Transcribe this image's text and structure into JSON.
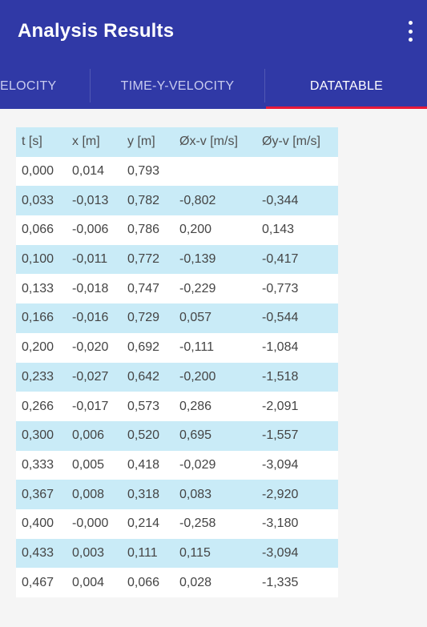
{
  "appbar": {
    "title": "Analysis Results",
    "menu_icon": "more-vert-icon"
  },
  "tabs": [
    {
      "label": "VELOCITY",
      "selected": false
    },
    {
      "label": "TIME-Y-VELOCITY",
      "selected": false
    },
    {
      "label": "DATATABLE",
      "selected": true
    }
  ],
  "colors": {
    "appbar": "#3039a6",
    "tab_indicator": "#e8193a",
    "row_highlight": "#c9ebf7"
  },
  "table": {
    "headers": [
      "t [s]",
      "x [m]",
      "y [m]",
      "Øx-v [m/s]",
      "Øy-v [m/s]"
    ],
    "rows": [
      [
        "0,000",
        "0,014",
        "0,793",
        "",
        ""
      ],
      [
        "0,033",
        "-0,013",
        "0,782",
        "-0,802",
        "-0,344"
      ],
      [
        "0,066",
        "-0,006",
        "0,786",
        "0,200",
        "0,143"
      ],
      [
        "0,100",
        "-0,011",
        "0,772",
        "-0,139",
        "-0,417"
      ],
      [
        "0,133",
        "-0,018",
        "0,747",
        "-0,229",
        "-0,773"
      ],
      [
        "0,166",
        "-0,016",
        "0,729",
        "0,057",
        "-0,544"
      ],
      [
        "0,200",
        "-0,020",
        "0,692",
        "-0,111",
        "-1,084"
      ],
      [
        "0,233",
        "-0,027",
        "0,642",
        "-0,200",
        "-1,518"
      ],
      [
        "0,266",
        "-0,017",
        "0,573",
        "0,286",
        "-2,091"
      ],
      [
        "0,300",
        "0,006",
        "0,520",
        "0,695",
        "-1,557"
      ],
      [
        "0,333",
        "0,005",
        "0,418",
        "-0,029",
        "-3,094"
      ],
      [
        "0,367",
        "0,008",
        "0,318",
        "0,083",
        "-2,920"
      ],
      [
        "0,400",
        "-0,000",
        "0,214",
        "-0,258",
        "-3,180"
      ],
      [
        "0,433",
        "0,003",
        "0,111",
        "0,115",
        "-3,094"
      ],
      [
        "0,467",
        "0,004",
        "0,066",
        "0,028",
        "-1,335"
      ]
    ]
  }
}
